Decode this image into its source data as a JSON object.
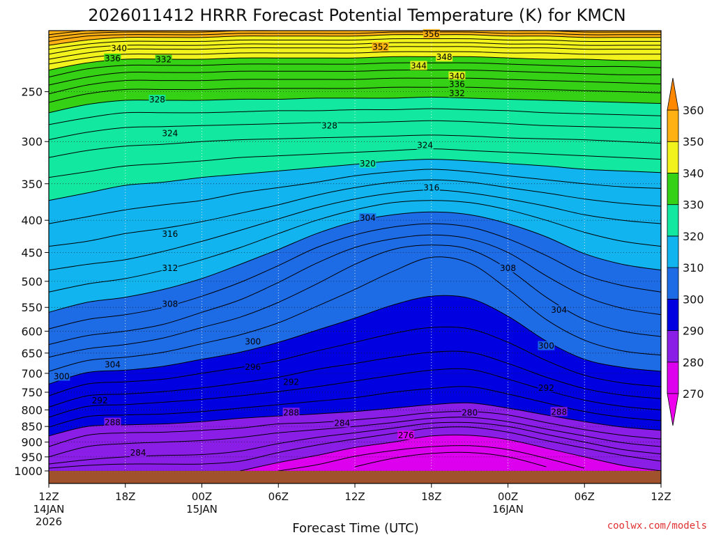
{
  "chart_data": {
    "type": "heatmap",
    "title": "2026011412 HRRR Forecast Potential Temperature (K) for KMCN",
    "xlabel": "Forecast Time (UTC)",
    "credit": "coolwx.com/models",
    "y_axis": {
      "scale": "log-pressure",
      "range_hPa": [
        1000,
        200
      ],
      "ticks": [
        250,
        300,
        350,
        400,
        450,
        500,
        550,
        600,
        650,
        700,
        750,
        800,
        850,
        900,
        950,
        1000
      ]
    },
    "x_axis": {
      "range_hours": [
        0,
        48
      ],
      "ticks": [
        {
          "h": 0,
          "label": "12Z",
          "sub": "14JAN",
          "sub2": "2026"
        },
        {
          "h": 6,
          "label": "18Z",
          "sub": "",
          "sub2": ""
        },
        {
          "h": 12,
          "label": "00Z",
          "sub": "15JAN",
          "sub2": ""
        },
        {
          "h": 18,
          "label": "06Z",
          "sub": "",
          "sub2": ""
        },
        {
          "h": 24,
          "label": "12Z",
          "sub": "",
          "sub2": ""
        },
        {
          "h": 30,
          "label": "18Z",
          "sub": "",
          "sub2": ""
        },
        {
          "h": 36,
          "label": "00Z",
          "sub": "16JAN",
          "sub2": ""
        },
        {
          "h": 42,
          "label": "06Z",
          "sub": "",
          "sub2": ""
        },
        {
          "h": 48,
          "label": "12Z",
          "sub": "",
          "sub2": ""
        }
      ]
    },
    "colorbar": {
      "levels": [
        270,
        280,
        290,
        300,
        310,
        320,
        330,
        340,
        350,
        360
      ],
      "band_colors": [
        "#dd00ee",
        "#8a1ee6",
        "#0000e0",
        "#1e6be6",
        "#11b4ee",
        "#12e8a0",
        "#35d114",
        "#f2f21c",
        "#ffb012"
      ],
      "arrow_low_color": "#ee00ee",
      "arrow_high_color": "#ff8800"
    },
    "ground_color": "#a0522d",
    "contour_interval": 2,
    "isentropes": [
      {
        "theta": 276,
        "p": [
          null,
          null,
          null,
          null,
          null,
          null,
          null,
          null,
          985,
          955,
          938,
          935,
          950,
          985,
          null,
          null,
          null
        ]
      },
      {
        "theta": 278,
        "p": [
          null,
          null,
          null,
          null,
          null,
          null,
          1000,
          978,
          948,
          928,
          915,
          912,
          925,
          955,
          990,
          null,
          null
        ]
      },
      {
        "theta": 280,
        "p": [
          null,
          null,
          null,
          null,
          null,
          1000,
          970,
          945,
          918,
          900,
          880,
          878,
          892,
          920,
          950,
          980,
          1000
        ]
      },
      {
        "theta": 282,
        "p": [
          990,
          980,
          975,
          975,
          975,
          965,
          935,
          910,
          890,
          872,
          855,
          852,
          868,
          895,
          920,
          945,
          965
        ]
      },
      {
        "theta": 284,
        "p": [
          975,
          960,
          950,
          945,
          942,
          930,
          905,
          885,
          870,
          855,
          840,
          838,
          850,
          875,
          900,
          925,
          940
        ]
      },
      {
        "theta": 286,
        "p": [
          950,
          915,
          905,
          900,
          895,
          885,
          870,
          860,
          850,
          838,
          825,
          822,
          835,
          858,
          880,
          902,
          915
        ]
      },
      {
        "theta": 288,
        "p": [
          915,
          878,
          870,
          868,
          862,
          855,
          842,
          838,
          830,
          820,
          808,
          805,
          815,
          838,
          860,
          878,
          890
        ]
      },
      {
        "theta": 290,
        "p": [
          880,
          850,
          845,
          842,
          835,
          825,
          818,
          812,
          805,
          795,
          785,
          780,
          795,
          815,
          835,
          852,
          862
        ]
      },
      {
        "theta": 292,
        "p": [
          852,
          820,
          815,
          812,
          805,
          795,
          785,
          775,
          765,
          750,
          740,
          735,
          755,
          780,
          805,
          822,
          832
        ]
      },
      {
        "theta": 294,
        "p": [
          822,
          790,
          785,
          778,
          770,
          760,
          748,
          735,
          720,
          705,
          692,
          690,
          715,
          745,
          772,
          790,
          800
        ]
      },
      {
        "theta": 296,
        "p": [
          792,
          760,
          755,
          748,
          738,
          725,
          710,
          690,
          675,
          660,
          648,
          648,
          675,
          710,
          740,
          758,
          768
        ]
      },
      {
        "theta": 298,
        "p": [
          760,
          728,
          722,
          715,
          700,
          685,
          668,
          645,
          625,
          605,
          592,
          595,
          625,
          668,
          705,
          725,
          735
        ]
      },
      {
        "theta": 300,
        "p": [
          728,
          698,
          692,
          682,
          665,
          648,
          625,
          598,
          572,
          545,
          528,
          532,
          568,
          622,
          665,
          685,
          695
        ]
      },
      {
        "theta": 302,
        "p": [
          695,
          668,
          660,
          648,
          628,
          608,
          582,
          548,
          515,
          482,
          458,
          468,
          515,
          575,
          620,
          645,
          655
        ]
      },
      {
        "theta": 304,
        "p": [
          660,
          640,
          630,
          615,
          592,
          570,
          540,
          505,
          470,
          445,
          438,
          445,
          478,
          530,
          575,
          600,
          612
        ]
      },
      {
        "theta": 306,
        "p": [
          630,
          610,
          600,
          585,
          560,
          535,
          502,
          468,
          442,
          428,
          422,
          428,
          450,
          490,
          528,
          552,
          565
        ]
      },
      {
        "theta": 308,
        "p": [
          595,
          575,
          565,
          550,
          528,
          502,
          472,
          442,
          422,
          410,
          405,
          410,
          428,
          455,
          488,
          508,
          520
        ]
      },
      {
        "theta": 310,
        "p": [
          560,
          540,
          530,
          515,
          495,
          470,
          445,
          420,
          402,
          392,
          388,
          392,
          405,
          425,
          452,
          470,
          480
        ]
      },
      {
        "theta": 312,
        "p": [
          520,
          505,
          495,
          480,
          462,
          442,
          420,
          400,
          385,
          375,
          372,
          375,
          385,
          400,
          418,
          432,
          440
        ]
      },
      {
        "theta": 314,
        "p": [
          480,
          470,
          462,
          448,
          432,
          415,
          398,
          382,
          370,
          362,
          358,
          362,
          370,
          380,
          392,
          400,
          405
        ]
      },
      {
        "theta": 316,
        "p": [
          440,
          432,
          420,
          412,
          402,
          390,
          378,
          365,
          355,
          348,
          345,
          348,
          355,
          362,
          370,
          376,
          380
        ]
      },
      {
        "theta": 318,
        "p": [
          405,
          395,
          385,
          378,
          372,
          362,
          355,
          348,
          340,
          335,
          332,
          335,
          340,
          345,
          350,
          354,
          356
        ]
      },
      {
        "theta": 320,
        "p": [
          372,
          362,
          352,
          348,
          342,
          338,
          334,
          330,
          326,
          322,
          320,
          322,
          325,
          328,
          332,
          334,
          336
        ]
      },
      {
        "theta": 322,
        "p": [
          342,
          335,
          328,
          325,
          322,
          318,
          316,
          314,
          312,
          310,
          308,
          310,
          312,
          314,
          316,
          318,
          320
        ]
      },
      {
        "theta": 324,
        "p": [
          318,
          310,
          305,
          303,
          300,
          298,
          297,
          296,
          295,
          294,
          293,
          294,
          296,
          297,
          298,
          300,
          302
        ]
      },
      {
        "theta": 326,
        "p": [
          298,
          290,
          285,
          284,
          283,
          282,
          281,
          280,
          280,
          279,
          278,
          279,
          281,
          283,
          284,
          285,
          286
        ]
      },
      {
        "theta": 328,
        "p": [
          282,
          275,
          270,
          270,
          270,
          269,
          268,
          268,
          267,
          267,
          266,
          267,
          268,
          270,
          271,
          272,
          273
        ]
      },
      {
        "theta": 330,
        "p": [
          270,
          262,
          258,
          258,
          258,
          257,
          257,
          256,
          256,
          256,
          255,
          256,
          257,
          258,
          259,
          260,
          261
        ]
      },
      {
        "theta": 332,
        "p": [
          260,
          252,
          248,
          248,
          248,
          247,
          247,
          247,
          247,
          246,
          246,
          246,
          247,
          248,
          249,
          250,
          251
        ]
      },
      {
        "theta": 334,
        "p": [
          252,
          244,
          240,
          240,
          240,
          239,
          239,
          239,
          239,
          238,
          238,
          238,
          239,
          240,
          241,
          242,
          243
        ]
      },
      {
        "theta": 336,
        "p": [
          244,
          237,
          233,
          233,
          233,
          232,
          232,
          232,
          232,
          231,
          231,
          231,
          232,
          233,
          234,
          235,
          235
        ]
      },
      {
        "theta": 338,
        "p": [
          237,
          230,
          227,
          227,
          227,
          226,
          226,
          226,
          226,
          225,
          225,
          225,
          226,
          227,
          228,
          228,
          229
        ]
      },
      {
        "theta": 340,
        "p": [
          231,
          225,
          222,
          222,
          222,
          221,
          221,
          221,
          221,
          220,
          220,
          220,
          221,
          222,
          222,
          223,
          223
        ]
      },
      {
        "theta": 342,
        "p": [
          226,
          221,
          218,
          218,
          218,
          217,
          217,
          217,
          217,
          216,
          216,
          216,
          217,
          217,
          218,
          218,
          218
        ]
      },
      {
        "theta": 344,
        "p": [
          222,
          217,
          214,
          214,
          214,
          213,
          213,
          213,
          213,
          212,
          212,
          212,
          213,
          213,
          214,
          214,
          214
        ]
      },
      {
        "theta": 346,
        "p": [
          218,
          213,
          211,
          211,
          211,
          210,
          210,
          210,
          210,
          209,
          209,
          209,
          210,
          210,
          211,
          211,
          211
        ]
      },
      {
        "theta": 348,
        "p": [
          214,
          210,
          208,
          208,
          208,
          207,
          207,
          207,
          207,
          206,
          206,
          206,
          207,
          207,
          208,
          208,
          208
        ]
      },
      {
        "theta": 350,
        "p": [
          211,
          207,
          205,
          205,
          205,
          204,
          204,
          204,
          204,
          203,
          203,
          203,
          204,
          204,
          205,
          205,
          205
        ]
      },
      {
        "theta": 352,
        "p": [
          208,
          204,
          203,
          203,
          203,
          202,
          202,
          202,
          202,
          201,
          201,
          201,
          202,
          202,
          203,
          203,
          203
        ]
      },
      {
        "theta": 354,
        "p": [
          205,
          202,
          201,
          201,
          201,
          200,
          200,
          200,
          200,
          200,
          200,
          200,
          200,
          200,
          201,
          201,
          201
        ]
      },
      {
        "theta": 356,
        "p": [
          203,
          200,
          200,
          200,
          200,
          200,
          200,
          200,
          200,
          200,
          200,
          200,
          200,
          200,
          200,
          200,
          200
        ]
      }
    ],
    "contour_labels": [
      {
        "text": "356",
        "h": 30,
        "p": 203
      },
      {
        "text": "352",
        "h": 26,
        "p": 213
      },
      {
        "text": "348",
        "h": 31,
        "p": 221
      },
      {
        "text": "344",
        "h": 29,
        "p": 228
      },
      {
        "text": "340",
        "h": 32,
        "p": 237
      },
      {
        "text": "336",
        "h": 32,
        "p": 244
      },
      {
        "text": "332",
        "h": 32,
        "p": 252
      },
      {
        "text": "340",
        "h": 5.5,
        "p": 214
      },
      {
        "text": "336",
        "h": 5,
        "p": 222
      },
      {
        "text": "332",
        "h": 9,
        "p": 223
      },
      {
        "text": "328",
        "h": 8.5,
        "p": 258
      },
      {
        "text": "328",
        "h": 22,
        "p": 284
      },
      {
        "text": "324",
        "h": 9.5,
        "p": 292
      },
      {
        "text": "324",
        "h": 29.5,
        "p": 305
      },
      {
        "text": "320",
        "h": 25,
        "p": 326
      },
      {
        "text": "316",
        "h": 30,
        "p": 356
      },
      {
        "text": "304",
        "h": 25,
        "p": 398
      },
      {
        "text": "316",
        "h": 9.5,
        "p": 422
      },
      {
        "text": "312",
        "h": 9.5,
        "p": 478
      },
      {
        "text": "308",
        "h": 36,
        "p": 478
      },
      {
        "text": "308",
        "h": 9.5,
        "p": 545
      },
      {
        "text": "304",
        "h": 40,
        "p": 557
      },
      {
        "text": "300",
        "h": 16,
        "p": 625
      },
      {
        "text": "300",
        "h": 39,
        "p": 635
      },
      {
        "text": "304",
        "h": 5,
        "p": 680
      },
      {
        "text": "296",
        "h": 16,
        "p": 686
      },
      {
        "text": "300",
        "h": 1,
        "p": 710
      },
      {
        "text": "292",
        "h": 19,
        "p": 725
      },
      {
        "text": "292",
        "h": 39,
        "p": 740
      },
      {
        "text": "292",
        "h": 4,
        "p": 775
      },
      {
        "text": "288",
        "h": 19,
        "p": 810
      },
      {
        "text": "288",
        "h": 40,
        "p": 808
      },
      {
        "text": "288",
        "h": 5,
        "p": 840
      },
      {
        "text": "284",
        "h": 23,
        "p": 842
      },
      {
        "text": "280",
        "h": 33,
        "p": 810
      },
      {
        "text": "276",
        "h": 28,
        "p": 880
      },
      {
        "text": "284",
        "h": 7,
        "p": 938
      }
    ]
  }
}
